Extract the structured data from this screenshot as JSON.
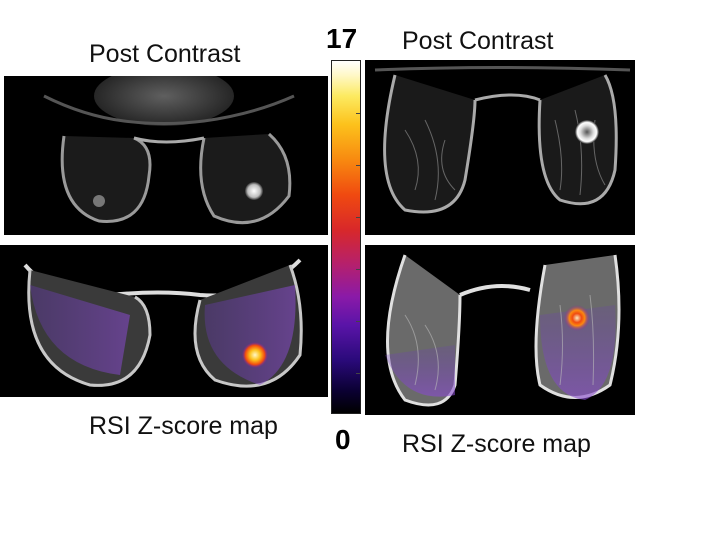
{
  "labels": {
    "top_left": "Post Contrast",
    "top_right": "Post Contrast",
    "bottom_left": "RSI Z-score map",
    "bottom_right": "RSI Z-score map"
  },
  "colorbar": {
    "max_label": "17",
    "min_label": "0",
    "colormap": "black-purple-red-orange-yellow-white"
  },
  "panels": [
    {
      "name": "axial-post-contrast",
      "kind": "grayscale MRI"
    },
    {
      "name": "axial-rsi-zscore-overlay",
      "kind": "MRI with z-score overlay"
    },
    {
      "name": "coronal-post-contrast",
      "kind": "grayscale MRI"
    },
    {
      "name": "coronal-rsi-zscore-overlay",
      "kind": "MRI with z-score overlay"
    }
  ]
}
